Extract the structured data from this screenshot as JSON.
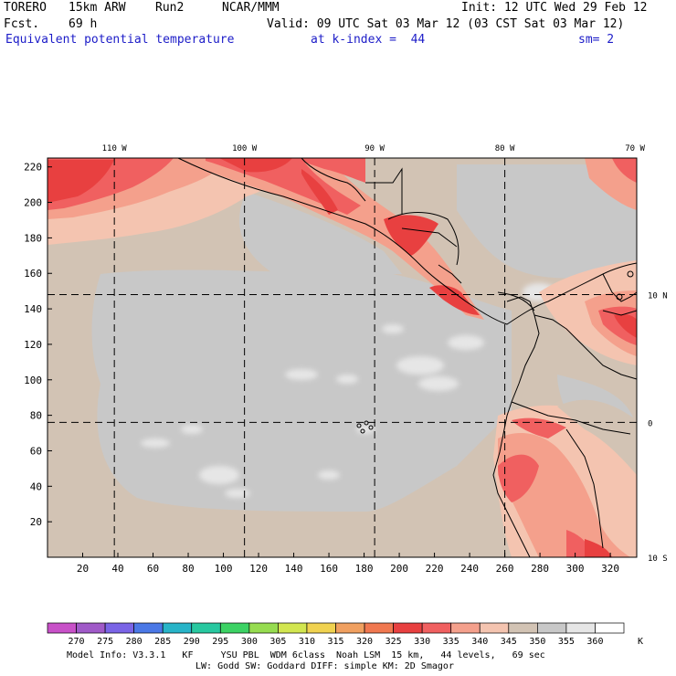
{
  "header": {
    "model": "TORERO",
    "resolution": "15km ARW",
    "run": "Run2",
    "org": "NCAR/MMM",
    "init": "Init: 12 UTC Wed 29 Feb 12",
    "fcst_label": "Fcst.",
    "fcst_value": "69 h",
    "valid": "Valid: 09 UTC Sat 03 Mar 12 (03 CST Sat 03 Mar 12)",
    "field": "Equivalent potential temperature",
    "level": "at k-index =  44",
    "smooth": "sm= 2"
  },
  "chart_data": {
    "type": "heatmap",
    "title": "Equivalent potential temperature",
    "x_ticks": [
      20,
      40,
      60,
      80,
      100,
      120,
      140,
      160,
      180,
      200,
      220,
      240,
      260,
      280,
      300,
      320
    ],
    "y_ticks": [
      20,
      40,
      60,
      80,
      100,
      120,
      140,
      160,
      180,
      200,
      220
    ],
    "xlim": [
      0,
      335
    ],
    "ylim": [
      0,
      225
    ],
    "lon_labels": [
      "110 W",
      "100 W",
      "90 W",
      "80 W",
      "70 W"
    ],
    "lon_grid_x": [
      38,
      112,
      186,
      260,
      334
    ],
    "lat_labels": [
      "10 N",
      "0",
      "10 S"
    ],
    "lat_grid_y": [
      148,
      76,
      0
    ],
    "colorbar": {
      "levels": [
        "270",
        "275",
        "280",
        "285",
        "290",
        "295",
        "300",
        "305",
        "310",
        "315",
        "320",
        "325",
        "330",
        "335",
        "340",
        "345",
        "350",
        "355",
        "360"
      ],
      "unit": "K",
      "colors": [
        "#c851c8",
        "#a05ac8",
        "#7a64e6",
        "#4b78e6",
        "#28b4c8",
        "#28c8a0",
        "#3cd264",
        "#96dc50",
        "#d2e650",
        "#f0d250",
        "#f0a060",
        "#f07850",
        "#e84040",
        "#f06060",
        "#f4a08c",
        "#f4c4b0",
        "#d2c3b4",
        "#c8c8c8",
        "#e6e6e6",
        "#ffffff"
      ]
    },
    "grid": true
  },
  "footer": {
    "line1": "Model Info: V3.3.1   KF     YSU PBL  WDM 6class  Noah LSM  15 km,   44 levels,   69 sec",
    "line2": "LW: Godd SW: Goddard DIFF: simple KM: 2D Smagor"
  }
}
